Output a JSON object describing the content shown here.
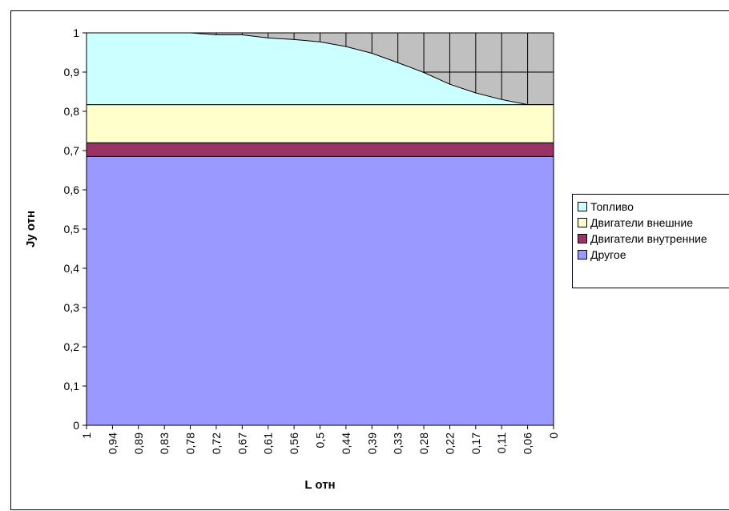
{
  "chart_data": {
    "type": "area",
    "stacked": true,
    "xlabel": "L отн",
    "ylabel": "Jу отн",
    "ylim": [
      0,
      1
    ],
    "yticks": [
      "0",
      "0,1",
      "0,2",
      "0,3",
      "0,4",
      "0,5",
      "0,6",
      "0,7",
      "0,8",
      "0,9",
      "1"
    ],
    "categories": [
      "1",
      "0,94",
      "0,89",
      "0,83",
      "0,78",
      "0,72",
      "0,67",
      "0,61",
      "0,56",
      "0,5",
      "0,44",
      "0,39",
      "0,33",
      "0,28",
      "0,22",
      "0,17",
      "0,11",
      "0,06",
      "0"
    ],
    "background_area_color": "#c0c0c0",
    "grid": true,
    "legend_position": "right",
    "series": [
      {
        "name": "Другое",
        "color": "#9999ff",
        "values": [
          0.685,
          0.685,
          0.685,
          0.685,
          0.685,
          0.685,
          0.685,
          0.685,
          0.685,
          0.685,
          0.685,
          0.685,
          0.685,
          0.685,
          0.685,
          0.685,
          0.685,
          0.685,
          0.685
        ]
      },
      {
        "name": "Двигатели внутренние",
        "color": "#993366",
        "values": [
          0.035,
          0.035,
          0.035,
          0.035,
          0.035,
          0.035,
          0.035,
          0.035,
          0.035,
          0.035,
          0.035,
          0.035,
          0.035,
          0.035,
          0.035,
          0.035,
          0.035,
          0.035,
          0.035
        ]
      },
      {
        "name": "Двигатели внешние",
        "color": "#ffffcc",
        "values": [
          0.097,
          0.097,
          0.097,
          0.097,
          0.097,
          0.097,
          0.097,
          0.097,
          0.097,
          0.097,
          0.097,
          0.097,
          0.097,
          0.097,
          0.097,
          0.097,
          0.097,
          0.097,
          0.097
        ]
      },
      {
        "name": "Топливо",
        "color": "#ccffff",
        "values": [
          0.183,
          0.183,
          0.183,
          0.183,
          0.183,
          0.178,
          0.178,
          0.17,
          0.166,
          0.16,
          0.148,
          0.131,
          0.107,
          0.082,
          0.052,
          0.03,
          0.013,
          0.0,
          0.0
        ]
      }
    ],
    "legend_order": [
      "Топливо",
      "Двигатели внешние",
      "Двигатели внутренние",
      "Другое"
    ]
  }
}
